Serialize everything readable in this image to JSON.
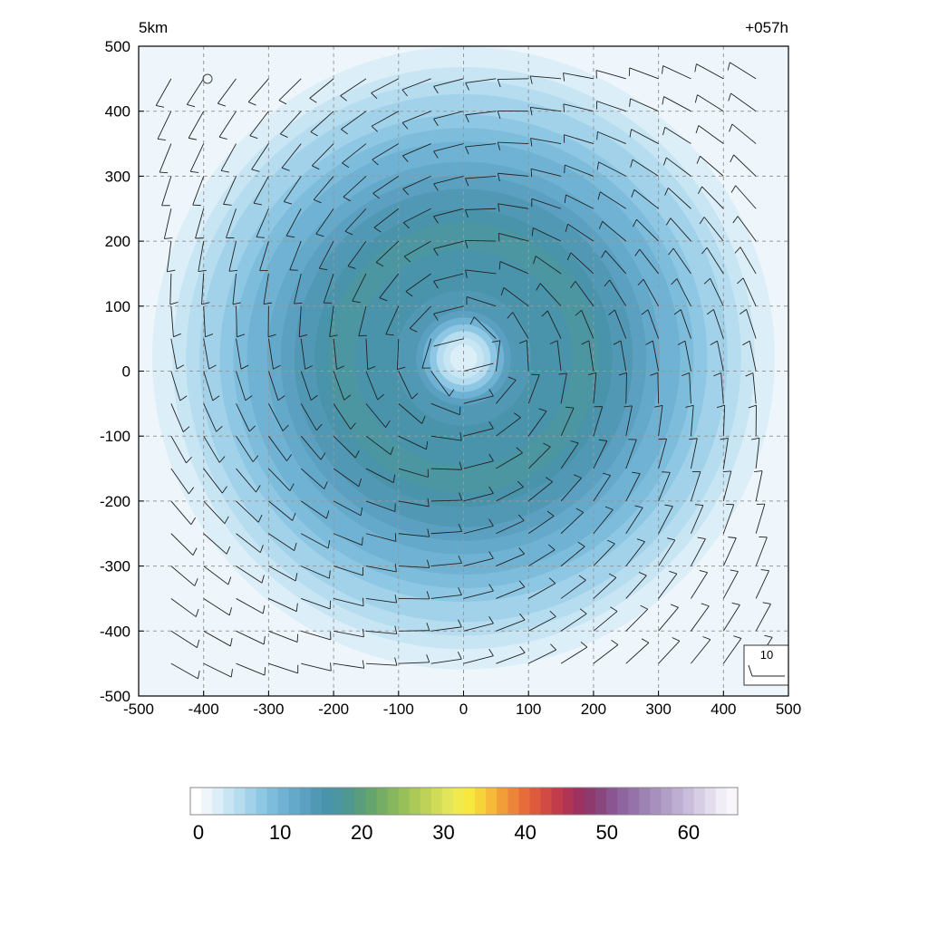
{
  "chart_data": {
    "type": "heatmap",
    "title_left": "5km",
    "title_right": "+057h",
    "xlabel": "",
    "ylabel": "",
    "xlim": [
      -500,
      500
    ],
    "ylim": [
      -500,
      500
    ],
    "x_ticks": [
      -500,
      -400,
      -300,
      -200,
      -100,
      0,
      100,
      200,
      300,
      400,
      500
    ],
    "y_ticks": [
      -500,
      -400,
      -300,
      -200,
      -100,
      0,
      100,
      200,
      300,
      400,
      500
    ],
    "grid": true,
    "grid_style": "dashed",
    "field": {
      "description_values": "wind speed shading, ring-shaped maximum around center",
      "center": [
        0,
        20
      ],
      "eye_radius": 80,
      "max_radius": 210,
      "max_value": 17,
      "eye_value": 2,
      "outer_value": 1,
      "outer_radius": 500
    },
    "barb_reference": {
      "label": "10",
      "value": 10,
      "location": "bottom-right"
    },
    "wind_barbs": {
      "spacing": 50,
      "rotation": "cyclonic"
    },
    "colorbar": {
      "min": 0,
      "max": 66,
      "tick_labels": [
        "0",
        "10",
        "20",
        "30",
        "40",
        "50",
        "60"
      ],
      "tick_values": [
        0,
        10,
        20,
        30,
        40,
        50,
        60
      ],
      "colors": [
        "#ffffff",
        "#eef6fb",
        "#dceef8",
        "#c8e5f4",
        "#b5dcef",
        "#a1d2ea",
        "#8dc7e3",
        "#7dbcdb",
        "#6fb2d3",
        "#64a9ca",
        "#5ba0c0",
        "#5198b5",
        "#4993ab",
        "#4b96a1",
        "#50988f",
        "#5a9d7c",
        "#65a46c",
        "#74ad63",
        "#86b65d",
        "#98c059",
        "#abc957",
        "#bed257",
        "#d0dc58",
        "#e2e55a",
        "#f1ea4e",
        "#f6e83f",
        "#f7d33a",
        "#f6b93a",
        "#f19e39",
        "#ec853a",
        "#e66d3a",
        "#dd5a3d",
        "#d14a43",
        "#c23d4b",
        "#b03454",
        "#9d3260",
        "#8f3a6e",
        "#8a467f",
        "#8a5590",
        "#8e659e",
        "#9573aa",
        "#9d82b4",
        "#a790be",
        "#b29fc8",
        "#beaed2",
        "#cabddc",
        "#d7cde5",
        "#e4ddee",
        "#f0edf6",
        "#f8f6fb"
      ]
    }
  }
}
